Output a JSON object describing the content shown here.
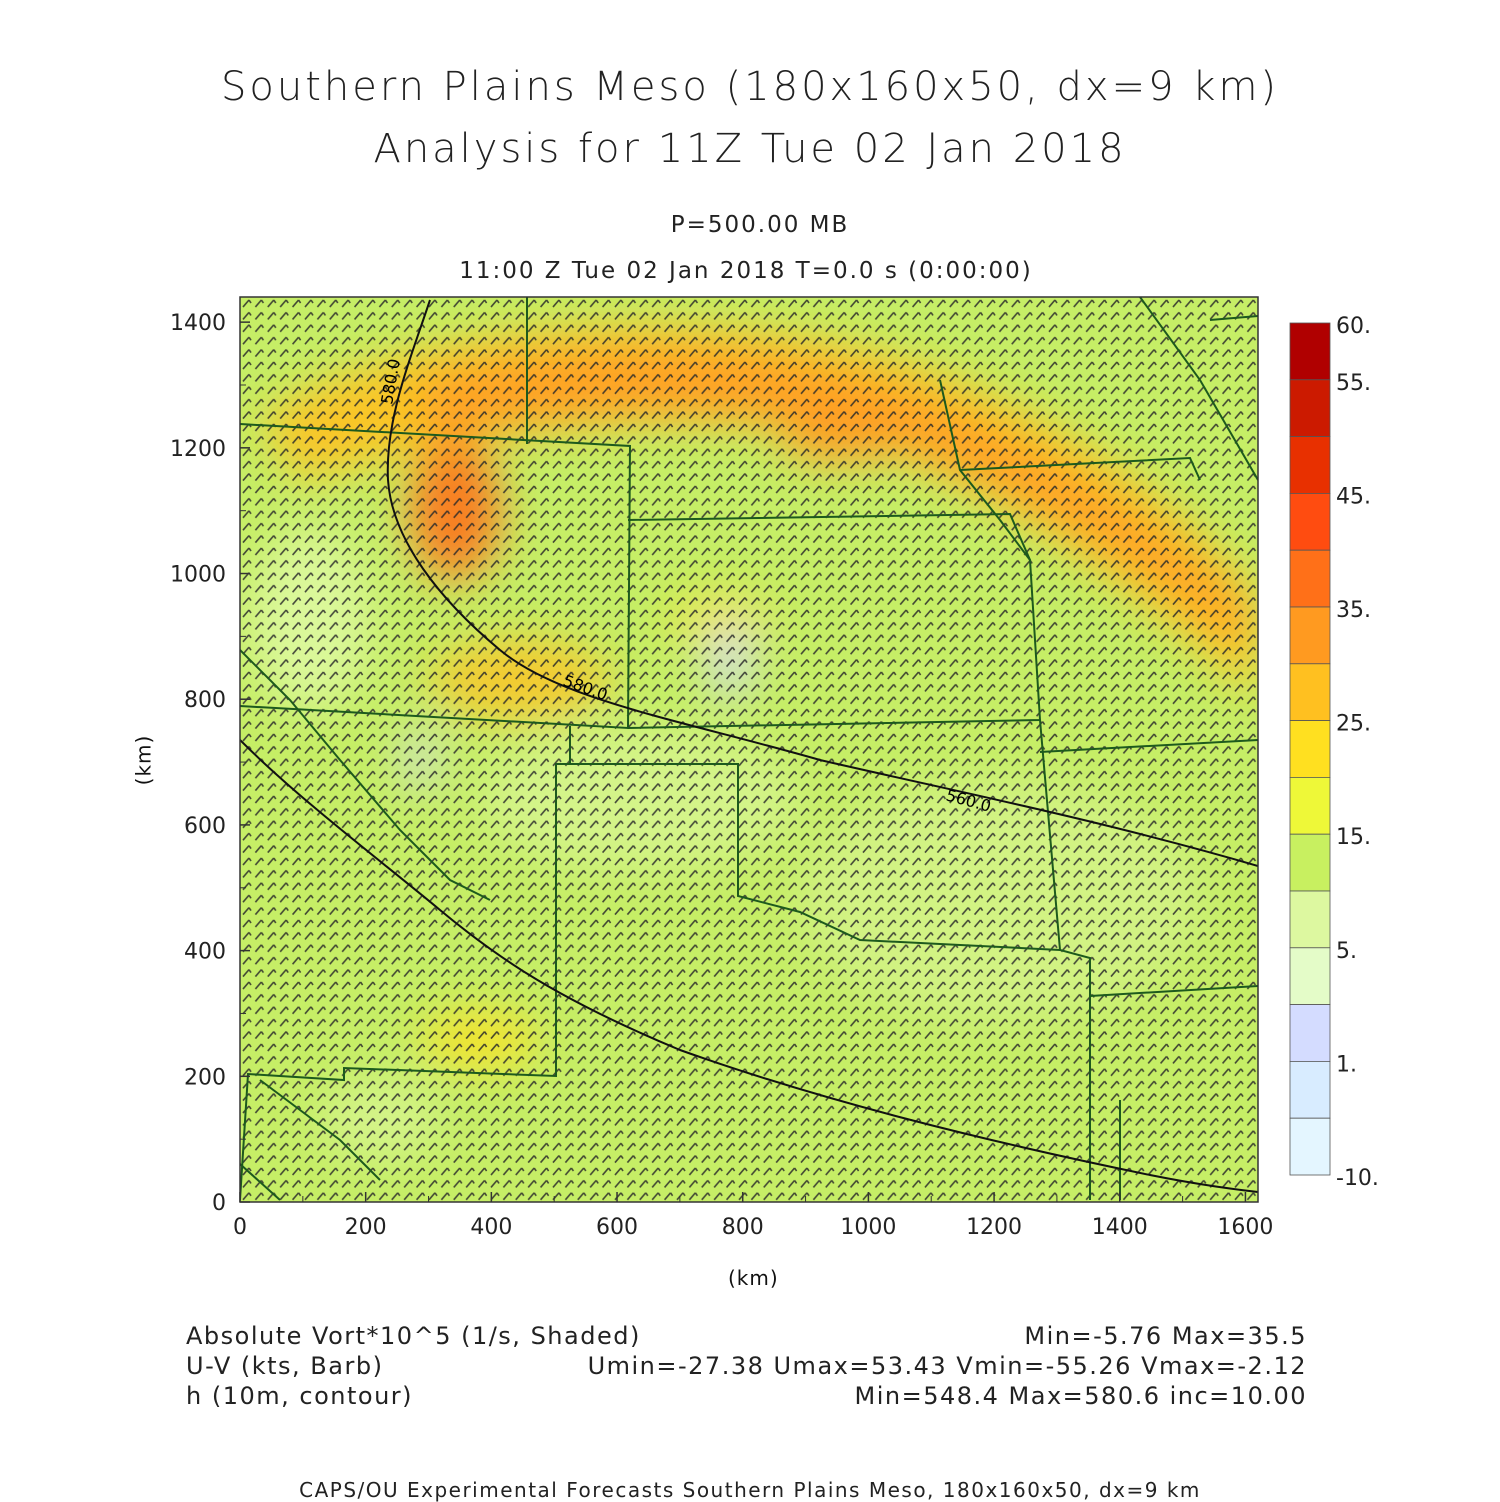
{
  "title_line1": "Southern Plains Meso (180x160x50, dx=9 km)",
  "title_line2": "Analysis for 11Z Tue 02 Jan 2018",
  "level_label": "P=500.00 MB",
  "time_label": "11:00 Z Tue 02 Jan 2018    T=0.0 s (0:00:00)",
  "x_axis": {
    "label": "(km)",
    "ticks": [
      "0",
      "200",
      "400",
      "600",
      "800",
      "1000",
      "1200",
      "1400",
      "1600"
    ],
    "range": [
      0,
      1620
    ]
  },
  "y_axis": {
    "label": "(km)",
    "ticks": [
      "0",
      "200",
      "400",
      "600",
      "800",
      "1000",
      "1200",
      "1400"
    ],
    "range": [
      0,
      1440
    ]
  },
  "colorbar": {
    "labels": [
      "60.",
      "55.",
      "45.",
      "35.",
      "25.",
      "15.",
      "5.",
      "1.",
      "-10."
    ],
    "colors": [
      "#b00000",
      "#cc1a00",
      "#e83000",
      "#ff4c10",
      "#ff7018",
      "#ff9a20",
      "#ffc020",
      "#ffe020",
      "#eef838",
      "#c8f060",
      "#ddf8a0",
      "#e4fcc8",
      "#d4dcff",
      "#d8ecff",
      "#e4f6ff"
    ]
  },
  "contour_labels": [
    "580.0",
    "580.0",
    "560.0"
  ],
  "legend": {
    "field1": "Absolute Vort*10^5 (1/s, Shaded)",
    "field1_stats": "Min=-5.76 Max=35.5",
    "field2": "U-V (kts, Barb)",
    "field2_stats": "Umin=-27.38 Umax=53.43 Vmin=-55.26 Vmax=-2.12",
    "field3": "h (10m, contour)",
    "field3_stats": "Min=548.4 Max=580.6 inc=10.00"
  },
  "footer": "CAPS/OU Experimental Forecasts  Southern Plains Meso, 180x160x50, dx=9 km"
}
